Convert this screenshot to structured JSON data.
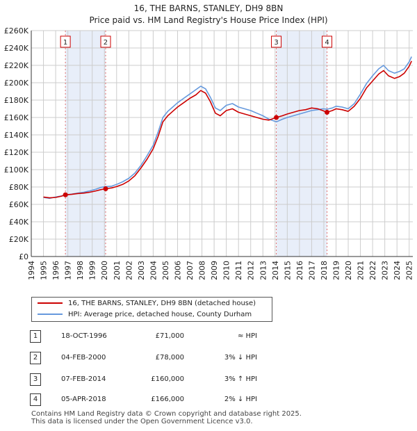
{
  "chart_data": {
    "type": "line",
    "title": "16, THE BARNS, STANLEY, DH9 8BN",
    "subtitle": "Price paid vs. HM Land Registry's House Price Index (HPI)",
    "ylim": [
      0,
      260000
    ],
    "xlim": [
      1994,
      2025.3
    ],
    "ytick_labels": [
      "£0",
      "£20K",
      "£40K",
      "£60K",
      "£80K",
      "£100K",
      "£120K",
      "£140K",
      "£160K",
      "£180K",
      "£200K",
      "£220K",
      "£240K",
      "£260K"
    ],
    "xtick_labels": [
      "1994",
      "1995",
      "1996",
      "1997",
      "1998",
      "1999",
      "2000",
      "2001",
      "2002",
      "2003",
      "2004",
      "2005",
      "2006",
      "2007",
      "2008",
      "2009",
      "2010",
      "2011",
      "2012",
      "2013",
      "2014",
      "2015",
      "2016",
      "2017",
      "2018",
      "2019",
      "2020",
      "2021",
      "2022",
      "2023",
      "2024",
      "2025"
    ],
    "grid": true,
    "shaded_periods": [
      [
        1996.8,
        2000.1
      ],
      [
        2014.1,
        2018.26
      ]
    ],
    "series": [
      {
        "name": "16, THE BARNS, STANLEY, DH9 8BN (detached house)",
        "color": "#cc0000",
        "points": [
          [
            1995.0,
            68500
          ],
          [
            1995.5,
            67500
          ],
          [
            1996.0,
            68000
          ],
          [
            1996.5,
            69500
          ],
          [
            1996.8,
            71000
          ],
          [
            1997.3,
            71500
          ],
          [
            1997.8,
            72500
          ],
          [
            1998.3,
            73000
          ],
          [
            1998.8,
            74000
          ],
          [
            1999.3,
            75500
          ],
          [
            1999.7,
            77000
          ],
          [
            2000.1,
            78000
          ],
          [
            2000.6,
            79000
          ],
          [
            2001.0,
            80500
          ],
          [
            2001.5,
            83000
          ],
          [
            2002.0,
            87000
          ],
          [
            2002.5,
            93000
          ],
          [
            2003.0,
            102000
          ],
          [
            2003.5,
            112000
          ],
          [
            2004.0,
            124000
          ],
          [
            2004.4,
            138000
          ],
          [
            2004.8,
            155000
          ],
          [
            2005.2,
            162000
          ],
          [
            2005.6,
            167000
          ],
          [
            2006.0,
            172000
          ],
          [
            2006.5,
            177000
          ],
          [
            2007.0,
            182000
          ],
          [
            2007.5,
            186000
          ],
          [
            2007.9,
            191000
          ],
          [
            2008.3,
            188000
          ],
          [
            2008.7,
            178000
          ],
          [
            2009.1,
            165000
          ],
          [
            2009.5,
            162000
          ],
          [
            2010.0,
            168000
          ],
          [
            2010.5,
            170000
          ],
          [
            2011.0,
            166000
          ],
          [
            2011.5,
            164000
          ],
          [
            2012.0,
            162000
          ],
          [
            2012.5,
            160000
          ],
          [
            2013.0,
            158000
          ],
          [
            2013.5,
            157000
          ],
          [
            2014.1,
            160000
          ],
          [
            2014.6,
            162000
          ],
          [
            2015.0,
            164000
          ],
          [
            2015.5,
            166000
          ],
          [
            2016.0,
            168000
          ],
          [
            2016.5,
            169000
          ],
          [
            2017.0,
            171000
          ],
          [
            2017.5,
            170000
          ],
          [
            2017.9,
            168000
          ],
          [
            2018.26,
            166000
          ],
          [
            2018.7,
            168000
          ],
          [
            2019.0,
            170000
          ],
          [
            2019.5,
            169000
          ],
          [
            2020.0,
            167000
          ],
          [
            2020.5,
            173000
          ],
          [
            2021.0,
            182000
          ],
          [
            2021.5,
            194000
          ],
          [
            2022.0,
            202000
          ],
          [
            2022.5,
            210000
          ],
          [
            2022.9,
            214000
          ],
          [
            2023.3,
            208000
          ],
          [
            2023.8,
            205000
          ],
          [
            2024.2,
            207000
          ],
          [
            2024.6,
            211000
          ],
          [
            2025.0,
            219000
          ],
          [
            2025.2,
            225000
          ]
        ]
      },
      {
        "name": "HPI: Average price, detached house, County Durham",
        "color": "#6699dd",
        "points": [
          [
            1995.0,
            68000
          ],
          [
            1995.5,
            67000
          ],
          [
            1996.0,
            68500
          ],
          [
            1996.5,
            69800
          ],
          [
            1996.8,
            71000
          ],
          [
            1997.3,
            71800
          ],
          [
            1997.8,
            73000
          ],
          [
            1998.3,
            74000
          ],
          [
            1998.8,
            75500
          ],
          [
            1999.3,
            77500
          ],
          [
            1999.7,
            79500
          ],
          [
            2000.1,
            80500
          ],
          [
            2000.6,
            81000
          ],
          [
            2001.0,
            83000
          ],
          [
            2001.5,
            86000
          ],
          [
            2002.0,
            90000
          ],
          [
            2002.5,
            96000
          ],
          [
            2003.0,
            105000
          ],
          [
            2003.5,
            116000
          ],
          [
            2004.0,
            128000
          ],
          [
            2004.4,
            143000
          ],
          [
            2004.8,
            160000
          ],
          [
            2005.2,
            167000
          ],
          [
            2005.6,
            172000
          ],
          [
            2006.0,
            177000
          ],
          [
            2006.5,
            182000
          ],
          [
            2007.0,
            187000
          ],
          [
            2007.5,
            192000
          ],
          [
            2007.9,
            196000
          ],
          [
            2008.3,
            193000
          ],
          [
            2008.7,
            183000
          ],
          [
            2009.1,
            171000
          ],
          [
            2009.5,
            168000
          ],
          [
            2010.0,
            174000
          ],
          [
            2010.5,
            176000
          ],
          [
            2011.0,
            172000
          ],
          [
            2011.5,
            170000
          ],
          [
            2012.0,
            168000
          ],
          [
            2012.5,
            165000
          ],
          [
            2013.0,
            162000
          ],
          [
            2013.5,
            158000
          ],
          [
            2014.1,
            155000
          ],
          [
            2014.6,
            158000
          ],
          [
            2015.0,
            160000
          ],
          [
            2015.5,
            162000
          ],
          [
            2016.0,
            164000
          ],
          [
            2016.5,
            166000
          ],
          [
            2017.0,
            168000
          ],
          [
            2017.5,
            169000
          ],
          [
            2017.9,
            170000
          ],
          [
            2018.26,
            169500
          ],
          [
            2018.7,
            171000
          ],
          [
            2019.0,
            173000
          ],
          [
            2019.5,
            172000
          ],
          [
            2020.0,
            170000
          ],
          [
            2020.5,
            176000
          ],
          [
            2021.0,
            187000
          ],
          [
            2021.5,
            199000
          ],
          [
            2022.0,
            208000
          ],
          [
            2022.5,
            216000
          ],
          [
            2022.9,
            220000
          ],
          [
            2023.3,
            214000
          ],
          [
            2023.8,
            211000
          ],
          [
            2024.2,
            213000
          ],
          [
            2024.6,
            216000
          ],
          [
            2025.0,
            224000
          ],
          [
            2025.2,
            230000
          ]
        ]
      }
    ],
    "transactions": [
      {
        "id": "1",
        "date": "18-OCT-1996",
        "price": "£71,000",
        "hpi": "≈ HPI",
        "x": 1996.8,
        "value": 71000
      },
      {
        "id": "2",
        "date": "04-FEB-2000",
        "price": "£78,000",
        "hpi": "3% ↓ HPI",
        "x": 2000.1,
        "value": 78000
      },
      {
        "id": "3",
        "date": "07-FEB-2014",
        "price": "£160,000",
        "hpi": "3% ↑ HPI",
        "x": 2014.1,
        "value": 160000
      },
      {
        "id": "4",
        "date": "05-APR-2018",
        "price": "£166,000",
        "hpi": "2% ↓ HPI",
        "x": 2018.26,
        "value": 166000
      }
    ]
  },
  "legend": {
    "property_label": "16, THE BARNS, STANLEY, DH9 8BN (detached house)",
    "hpi_label": "HPI: Average price, detached house, County Durham",
    "property_color": "#cc0000",
    "hpi_color": "#6699dd"
  },
  "footer": {
    "line1": "Contains HM Land Registry data © Crown copyright and database right 2025.",
    "line2": "This data is licensed under the Open Government Licence v3.0."
  }
}
